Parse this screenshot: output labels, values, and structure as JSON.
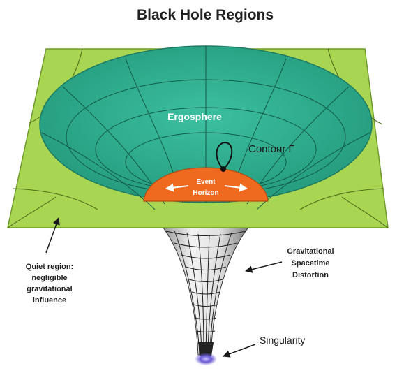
{
  "title": "Black Hole Regions",
  "labels": {
    "ergosphere": "Ergosphere",
    "contour": "Contour Γ",
    "event_horizon_line1": "Event",
    "event_horizon_line2": "Horizon",
    "quiet_line1": "Quiet region:",
    "quiet_line2": "negligible",
    "quiet_line3": "gravitational",
    "quiet_line4": "influence",
    "distortion_line1": "Gravitational",
    "distortion_line2": "Spacetime",
    "distortion_line3": "Distortion",
    "singularity": "Singularity"
  },
  "colors": {
    "plane": "#a8d653",
    "plane_edge": "#6e9a2a",
    "ergosphere": "#2fae8f",
    "ergosphere_edge": "#1d7a63",
    "event_horizon": "#ef6a1f",
    "funnel_fill": "#e8e8e8",
    "singularity_glow": "#6b5bd6"
  }
}
